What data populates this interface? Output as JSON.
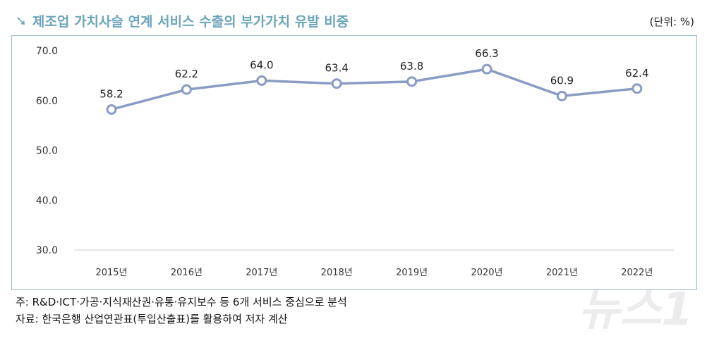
{
  "title": "제조업 가치사슬 연계 서비스 수출의 부가가치 유발 비중",
  "unit": "(단위: %)",
  "notes": [
    "주: R&D·ICT·가공·지식재산권·유통·유지보수 등 6개 서비스 중심으로 분석",
    "자료: 한국은행 산업연관표(투입산출표)를 활용하여 저자 계산"
  ],
  "watermark": "뉴스1",
  "chart_data": {
    "type": "line",
    "categories": [
      "2015년",
      "2016년",
      "2017년",
      "2018년",
      "2019년",
      "2020년",
      "2021년",
      "2022년"
    ],
    "values": [
      58.2,
      62.2,
      64.0,
      63.4,
      63.8,
      66.3,
      60.9,
      62.4
    ],
    "ylim": [
      30,
      70
    ],
    "yticks": [
      "30.0",
      "40.0",
      "50.0",
      "60.0",
      "70.0"
    ],
    "grid": false,
    "line_color": "#8a9cc4"
  }
}
